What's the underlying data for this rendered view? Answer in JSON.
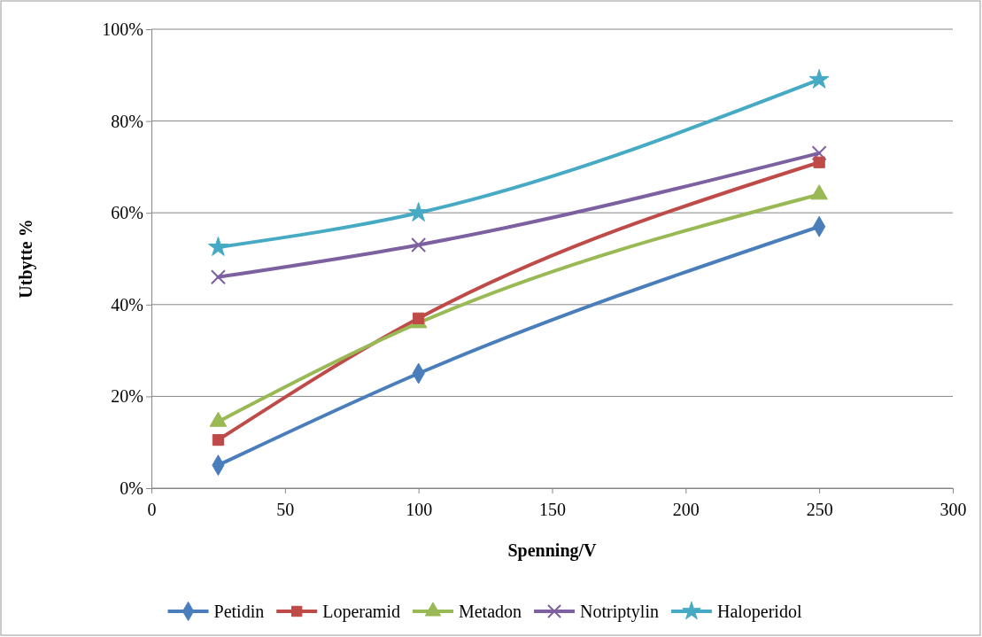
{
  "chart_data": {
    "type": "line",
    "xlabel": "Spenning/V",
    "ylabel": "Utbytte %",
    "x": [
      25,
      100,
      250
    ],
    "xlim": [
      0,
      300
    ],
    "xticks": [
      0,
      50,
      100,
      150,
      200,
      250,
      300
    ],
    "ylim": [
      0,
      100
    ],
    "yticks": [
      {
        "value": 0,
        "label": "0%"
      },
      {
        "value": 20,
        "label": "20%"
      },
      {
        "value": 40,
        "label": "40%"
      },
      {
        "value": 60,
        "label": "60%"
      },
      {
        "value": 80,
        "label": "80%"
      },
      {
        "value": 100,
        "label": "100%"
      }
    ],
    "grid": "y",
    "legend": "bottom",
    "line_style": "solid",
    "series": [
      {
        "name": "Petidin",
        "color": "#4a7ebb",
        "marker": "diamond",
        "values": [
          5,
          25,
          57
        ]
      },
      {
        "name": "Loperamid",
        "color": "#be4b48",
        "marker": "square",
        "values": [
          10.5,
          37,
          71
        ]
      },
      {
        "name": "Metadon",
        "color": "#98b954",
        "marker": "triangle",
        "values": [
          14.5,
          36,
          64
        ]
      },
      {
        "name": "Notriptylin",
        "color": "#7d60a0",
        "marker": "cross",
        "values": [
          46,
          53,
          73
        ]
      },
      {
        "name": "Haloperidol",
        "color": "#46aac5",
        "marker": "star",
        "values": [
          52.5,
          60,
          89
        ]
      }
    ]
  }
}
